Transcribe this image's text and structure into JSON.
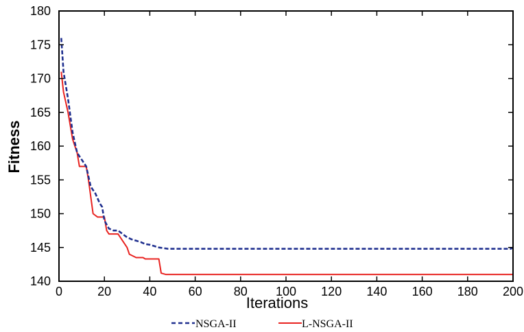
{
  "chart_data": {
    "type": "line",
    "xlabel": "Iterations",
    "ylabel": "Fitness",
    "xlim": [
      0,
      200
    ],
    "ylim": [
      140,
      180
    ],
    "x_ticks": [
      0,
      20,
      40,
      60,
      80,
      100,
      120,
      140,
      160,
      180,
      200
    ],
    "y_ticks": [
      140,
      145,
      150,
      155,
      160,
      165,
      170,
      175,
      180
    ],
    "grid": false,
    "legend_position": "bottom",
    "series": [
      {
        "name": "NSGA-II",
        "color": "#1f2f8f",
        "style": "dashed",
        "points": [
          [
            1,
            176
          ],
          [
            2,
            171
          ],
          [
            4,
            167
          ],
          [
            6,
            162
          ],
          [
            8,
            159
          ],
          [
            10,
            158
          ],
          [
            12,
            157
          ],
          [
            14,
            154
          ],
          [
            16,
            153
          ],
          [
            18,
            151.5
          ],
          [
            19,
            151
          ],
          [
            20,
            149
          ],
          [
            22,
            147.8
          ],
          [
            24,
            147.5
          ],
          [
            26,
            147.5
          ],
          [
            28,
            147
          ],
          [
            30,
            146.5
          ],
          [
            32,
            146.2
          ],
          [
            34,
            146
          ],
          [
            36,
            145.8
          ],
          [
            38,
            145.5
          ],
          [
            40,
            145.4
          ],
          [
            42,
            145.2
          ],
          [
            44,
            145
          ],
          [
            46,
            144.9
          ],
          [
            48,
            144.8
          ],
          [
            50,
            144.8
          ],
          [
            60,
            144.8
          ],
          [
            80,
            144.8
          ],
          [
            100,
            144.8
          ],
          [
            120,
            144.8
          ],
          [
            140,
            144.8
          ],
          [
            160,
            144.8
          ],
          [
            180,
            144.8
          ],
          [
            199,
            144.8
          ],
          [
            200,
            145
          ]
        ]
      },
      {
        "name": "L-NSGA-II",
        "color": "#e8221f",
        "style": "solid",
        "points": [
          [
            1,
            171
          ],
          [
            2,
            168
          ],
          [
            4,
            165
          ],
          [
            6,
            161
          ],
          [
            8,
            159
          ],
          [
            9,
            157
          ],
          [
            12,
            157
          ],
          [
            13,
            155
          ],
          [
            15,
            150
          ],
          [
            17,
            149.5
          ],
          [
            20,
            149.5
          ],
          [
            21,
            147.5
          ],
          [
            22,
            147
          ],
          [
            26,
            147
          ],
          [
            28,
            146
          ],
          [
            30,
            145
          ],
          [
            31,
            144
          ],
          [
            34,
            143.5
          ],
          [
            37,
            143.5
          ],
          [
            38,
            143.3
          ],
          [
            44,
            143.3
          ],
          [
            45,
            141.2
          ],
          [
            47,
            141
          ],
          [
            60,
            141
          ],
          [
            80,
            141
          ],
          [
            100,
            141
          ],
          [
            120,
            141
          ],
          [
            140,
            141
          ],
          [
            160,
            141
          ],
          [
            180,
            141
          ],
          [
            200,
            141
          ]
        ]
      }
    ]
  }
}
